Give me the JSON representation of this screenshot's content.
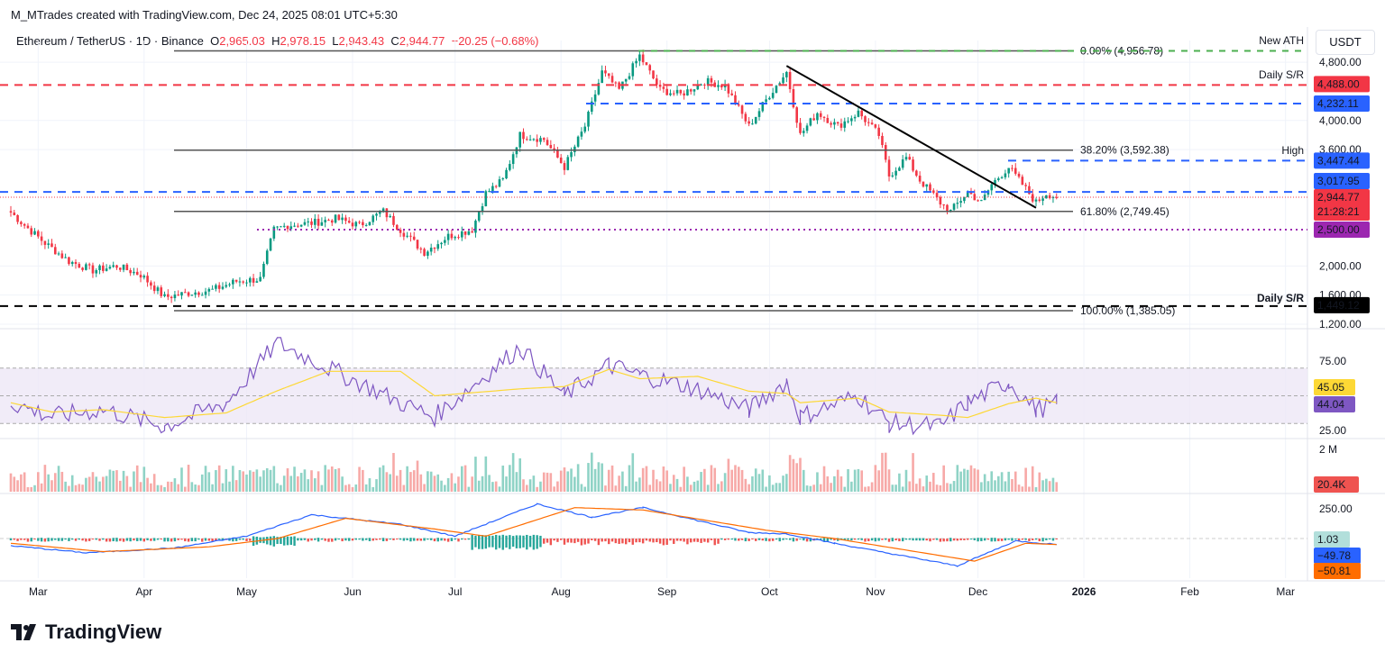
{
  "credit": "M_MTrades created with TradingView.com, Dec 24, 2025 08:01 UTC+5:30",
  "legend": {
    "symbol": "Ethereum / TetherUS · 1D · Binance",
    "o_label": "O",
    "o": "2,965.03",
    "h_label": "H",
    "h": "2,978.15",
    "l_label": "L",
    "l": "2,943.43",
    "c_label": "C",
    "c": "2,944.77",
    "change": "−20.25 (−0.68%)"
  },
  "currency_button": "USDT",
  "logo_text": "TradingView",
  "colors": {
    "up": "#089981",
    "down": "#f23645",
    "sr_red": "#f23645",
    "sr_blue": "#2962ff",
    "ath_green": "#4caf50",
    "purple": "#9c27b0",
    "rsi": "#7e57c2",
    "rsi_ma": "#fdd835",
    "macd": "#2962ff",
    "signal": "#ff6d00"
  },
  "chart_data": {
    "type": "candlestick",
    "interval": "1D",
    "price_axis": {
      "ticks": [
        "4,800.00",
        "4,000.00",
        "3,600.00",
        "2,000.00",
        "1,600.00",
        "1,200.00"
      ],
      "tick_values": [
        4800,
        4000,
        3600,
        2000,
        1600,
        1200
      ],
      "range": [
        1200,
        5000
      ],
      "scale": "linear"
    },
    "time_axis": {
      "ticks": [
        "Mar",
        "Apr",
        "May",
        "Jun",
        "Jul",
        "Aug",
        "Sep",
        "Oct",
        "Nov",
        "Dec",
        "2026",
        "Feb",
        "Mar"
      ],
      "tick_dates": [
        "2025-03-01",
        "2025-04-01",
        "2025-05-01",
        "2025-06-01",
        "2025-07-01",
        "2025-08-01",
        "2025-09-01",
        "2025-10-01",
        "2025-11-01",
        "2025-12-01",
        "2026-01-01",
        "2026-02-01",
        "2026-03-01"
      ]
    },
    "closes": [
      [
        "2025-02-21",
        2735
      ],
      [
        "2025-02-25",
        2560
      ],
      [
        "2025-03-03",
        2314
      ],
      [
        "2025-03-10",
        2066
      ],
      [
        "2025-03-17",
        1940
      ],
      [
        "2025-03-24",
        2000
      ],
      [
        "2025-03-31",
        1880
      ],
      [
        "2025-04-07",
        1570
      ],
      [
        "2025-04-14",
        1630
      ],
      [
        "2025-04-21",
        1670
      ],
      [
        "2025-04-28",
        1790
      ],
      [
        "2025-05-05",
        1820
      ],
      [
        "2025-05-09",
        2500
      ],
      [
        "2025-05-13",
        2560
      ],
      [
        "2025-05-20",
        2590
      ],
      [
        "2025-05-27",
        2650
      ],
      [
        "2025-06-03",
        2560
      ],
      [
        "2025-06-10",
        2750
      ],
      [
        "2025-06-15",
        2500
      ],
      [
        "2025-06-22",
        2190
      ],
      [
        "2025-06-29",
        2410
      ],
      [
        "2025-07-06",
        2500
      ],
      [
        "2025-07-10",
        3000
      ],
      [
        "2025-07-15",
        3180
      ],
      [
        "2025-07-20",
        3800
      ],
      [
        "2025-07-27",
        3740
      ],
      [
        "2025-08-02",
        3360
      ],
      [
        "2025-08-08",
        3920
      ],
      [
        "2025-08-13",
        4665
      ],
      [
        "2025-08-18",
        4420
      ],
      [
        "2025-08-24",
        4890
      ],
      [
        "2025-08-30",
        4420
      ],
      [
        "2025-09-05",
        4355
      ],
      [
        "2025-09-12",
        4540
      ],
      [
        "2025-09-18",
        4480
      ],
      [
        "2025-09-25",
        3920
      ],
      [
        "2025-10-01",
        4355
      ],
      [
        "2025-10-06",
        4665
      ],
      [
        "2025-10-10",
        3800
      ],
      [
        "2025-10-15",
        4110
      ],
      [
        "2025-10-21",
        3920
      ],
      [
        "2025-10-27",
        4110
      ],
      [
        "2025-11-02",
        3800
      ],
      [
        "2025-11-05",
        3240
      ],
      [
        "2025-11-10",
        3490
      ],
      [
        "2025-11-14",
        3180
      ],
      [
        "2025-11-20",
        2870
      ],
      [
        "2025-11-23",
        2750
      ],
      [
        "2025-11-28",
        3020
      ],
      [
        "2025-12-02",
        2870
      ],
      [
        "2025-12-05",
        3120
      ],
      [
        "2025-12-10",
        3360
      ],
      [
        "2025-12-14",
        3120
      ],
      [
        "2025-12-18",
        2870
      ],
      [
        "2025-12-21",
        3000
      ],
      [
        "2025-12-24",
        2944.77
      ]
    ],
    "levels": [
      {
        "name": "new-ath",
        "value": 4956.78,
        "label": "New ATH",
        "tag": "0.00% (4,956.78)",
        "color": "#4caf50",
        "style": "dashed"
      },
      {
        "name": "daily-sr-upper",
        "value": 4488.0,
        "label": "Daily S/R",
        "price_tag": "4,488.00",
        "color": "#f23645",
        "style": "dashed"
      },
      {
        "name": "resistance-4232",
        "value": 4232.11,
        "price_tag": "4,232.11",
        "color": "#2962ff",
        "style": "dashed"
      },
      {
        "name": "high",
        "value": 3447.44,
        "label": "High",
        "price_tag": "3,447.44",
        "color": "#2962ff",
        "style": "dashed"
      },
      {
        "name": "resistance-3017",
        "value": 3017.95,
        "price_tag": "3,017.95",
        "color": "#2962ff",
        "style": "dashed"
      },
      {
        "name": "support-2500",
        "value": 2500.0,
        "price_tag": "2,500.00",
        "color": "#9c27b0",
        "style": "dotted"
      },
      {
        "name": "daily-sr-lower",
        "value": 1449.12,
        "label": "Daily S/R",
        "price_tag": "1,449.12",
        "color": "#000000",
        "style": "dashed"
      }
    ],
    "fibonacci": [
      {
        "level": "0.00%",
        "value": 4956.78,
        "text": "0.00% (4,956.78)"
      },
      {
        "level": "38.20%",
        "value": 3592.38,
        "text": "38.20% (3,592.38)"
      },
      {
        "level": "61.80%",
        "value": 2749.45,
        "text": "61.80% (2,749.45)"
      },
      {
        "level": "100.00%",
        "value": 1385.05,
        "text": "100.00% (1,385.05)"
      }
    ],
    "trendline": {
      "from": [
        "2025-10-06",
        4750
      ],
      "to": [
        "2025-12-18",
        2800
      ]
    },
    "last_price": {
      "value": 2944.77,
      "text": "2,944.77",
      "countdown": "21:28:21"
    },
    "rsi": {
      "ticks": [
        "75.00",
        "25.00"
      ],
      "band": [
        30,
        70
      ],
      "mid": 50,
      "value": "44.04",
      "ma_value": "45.05",
      "points": [
        [
          "2025-02-21",
          45
        ],
        [
          "2025-03-05",
          35
        ],
        [
          "2025-03-20",
          40
        ],
        [
          "2025-04-07",
          28
        ],
        [
          "2025-04-25",
          45
        ],
        [
          "2025-05-10",
          88
        ],
        [
          "2025-05-25",
          70
        ],
        [
          "2025-06-15",
          45
        ],
        [
          "2025-06-25",
          35
        ],
        [
          "2025-07-20",
          85
        ],
        [
          "2025-08-02",
          50
        ],
        [
          "2025-08-15",
          72
        ],
        [
          "2025-08-24",
          65
        ],
        [
          "2025-09-10",
          55
        ],
        [
          "2025-09-25",
          40
        ],
        [
          "2025-10-06",
          60
        ],
        [
          "2025-10-10",
          35
        ],
        [
          "2025-10-27",
          50
        ],
        [
          "2025-11-05",
          30
        ],
        [
          "2025-11-20",
          28
        ],
        [
          "2025-11-28",
          45
        ],
        [
          "2025-12-10",
          60
        ],
        [
          "2025-12-18",
          40
        ],
        [
          "2025-12-24",
          44
        ]
      ]
    },
    "volume": {
      "tick": "2 M",
      "value": "20.4K"
    },
    "macd": {
      "tick": "250.00",
      "histogram_value": "1.03",
      "macd_value": "−49.78",
      "signal_value": "−50.81",
      "macd_points": [
        [
          "2025-02-21",
          -60
        ],
        [
          "2025-03-15",
          -120
        ],
        [
          "2025-04-10",
          -80
        ],
        [
          "2025-05-01",
          20
        ],
        [
          "2025-05-20",
          200
        ],
        [
          "2025-06-15",
          120
        ],
        [
          "2025-07-01",
          20
        ],
        [
          "2025-07-25",
          290
        ],
        [
          "2025-08-10",
          180
        ],
        [
          "2025-08-25",
          260
        ],
        [
          "2025-09-25",
          50
        ],
        [
          "2025-10-06",
          40
        ],
        [
          "2025-10-20",
          -40
        ],
        [
          "2025-11-25",
          -230
        ],
        [
          "2025-12-12",
          -20
        ],
        [
          "2025-12-24",
          -49.78
        ]
      ],
      "signal_points": [
        [
          "2025-02-21",
          -40
        ],
        [
          "2025-03-20",
          -110
        ],
        [
          "2025-04-20",
          -70
        ],
        [
          "2025-05-10",
          0
        ],
        [
          "2025-05-30",
          170
        ],
        [
          "2025-06-25",
          80
        ],
        [
          "2025-07-10",
          20
        ],
        [
          "2025-08-05",
          260
        ],
        [
          "2025-08-25",
          240
        ],
        [
          "2025-09-30",
          70
        ],
        [
          "2025-10-20",
          0
        ],
        [
          "2025-11-30",
          -190
        ],
        [
          "2025-12-15",
          -40
        ],
        [
          "2025-12-24",
          -50.81
        ]
      ]
    }
  }
}
